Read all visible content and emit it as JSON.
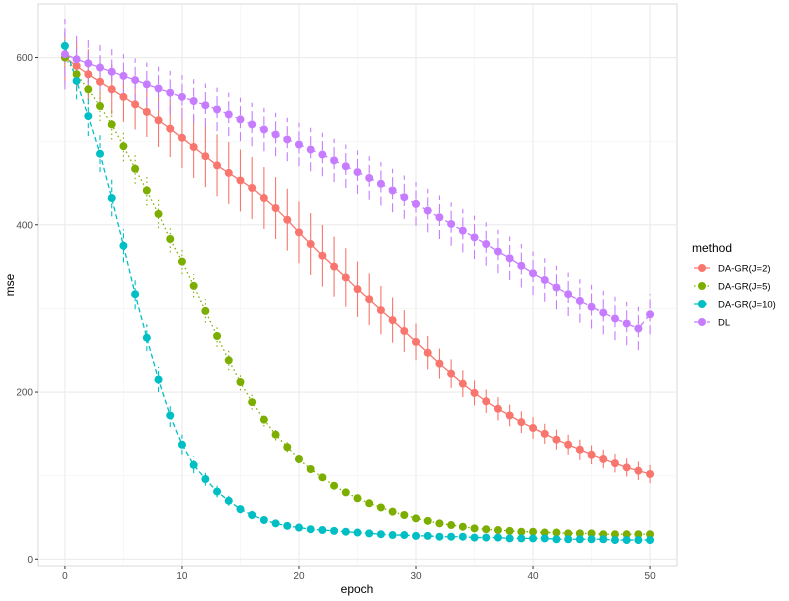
{
  "chart_data": {
    "type": "line",
    "xlabel": "epoch",
    "ylabel": "mse",
    "xlim": [
      -2.3,
      52.3
    ],
    "ylim": [
      -8,
      664
    ],
    "x_ticks": [
      0,
      10,
      20,
      30,
      40,
      50
    ],
    "y_ticks": [
      0,
      200,
      400,
      600
    ],
    "grid": true,
    "legend": {
      "title": "method",
      "position": "right"
    },
    "series": [
      {
        "name": "DA-GR(J=2)",
        "color": "#F8766D",
        "dash": "solid",
        "x": [
          0,
          1,
          2,
          3,
          4,
          5,
          6,
          7,
          8,
          9,
          10,
          11,
          12,
          13,
          14,
          15,
          16,
          17,
          18,
          19,
          20,
          21,
          22,
          23,
          24,
          25,
          26,
          27,
          28,
          29,
          30,
          31,
          32,
          33,
          34,
          35,
          36,
          37,
          38,
          39,
          40,
          41,
          42,
          43,
          44,
          45,
          46,
          47,
          48,
          49,
          50
        ],
        "y": [
          600,
          590,
          580,
          571,
          562,
          553,
          544,
          535,
          525,
          515,
          504,
          493,
          482,
          471,
          462,
          453,
          444,
          432,
          420,
          406,
          391,
          377,
          363,
          350,
          337,
          323,
          311,
          298,
          286,
          273,
          260,
          247,
          234,
          222,
          210,
          199,
          189,
          180,
          172,
          164,
          157,
          150,
          143,
          137,
          131,
          125,
          120,
          115,
          110,
          106,
          102
        ],
        "err": [
          30,
          30,
          30,
          30,
          30,
          30,
          30,
          30,
          32,
          34,
          36,
          37,
          37,
          37,
          37,
          37,
          37,
          37,
          37,
          37,
          37,
          37,
          37,
          36,
          35,
          33,
          31,
          29,
          27,
          25,
          22,
          20,
          18,
          17,
          16,
          15,
          14,
          14,
          13,
          13,
          13,
          12,
          12,
          12,
          12,
          11,
          11,
          11,
          11,
          11,
          11
        ]
      },
      {
        "name": "DA-GR(J=5)",
        "color": "#7CAE00",
        "dash": "dotted",
        "x": [
          0,
          1,
          2,
          3,
          4,
          5,
          6,
          7,
          8,
          9,
          10,
          11,
          12,
          13,
          14,
          15,
          16,
          17,
          18,
          19,
          20,
          21,
          22,
          23,
          24,
          25,
          26,
          27,
          28,
          29,
          30,
          31,
          32,
          33,
          34,
          35,
          36,
          37,
          38,
          39,
          40,
          41,
          42,
          43,
          44,
          45,
          46,
          47,
          48,
          49,
          50
        ],
        "y": [
          600,
          580,
          562,
          542,
          520,
          494,
          467,
          441,
          413,
          383,
          356,
          327,
          297,
          267,
          238,
          212,
          188,
          167,
          149,
          134,
          120,
          108,
          98,
          88,
          80,
          73,
          67,
          62,
          57,
          53,
          49,
          46,
          43,
          41,
          39,
          37,
          36,
          35,
          34,
          33,
          33,
          32,
          32,
          31,
          31,
          31,
          30,
          30,
          30,
          30,
          30
        ],
        "err": [
          18,
          18,
          18,
          18,
          18,
          18,
          18,
          18,
          17,
          16,
          15,
          14,
          14,
          13,
          12,
          10,
          9,
          8,
          7,
          6,
          5,
          5,
          4,
          4,
          4,
          3,
          3,
          3,
          3,
          3,
          3,
          3,
          3,
          3,
          3,
          3,
          3,
          3,
          3,
          3,
          3,
          3,
          3,
          3,
          3,
          3,
          3,
          3,
          3,
          3,
          3
        ]
      },
      {
        "name": "DA-GR(J=10)",
        "color": "#00BFC4",
        "dash": "dashed",
        "x": [
          0,
          1,
          2,
          3,
          4,
          5,
          6,
          7,
          8,
          9,
          10,
          11,
          12,
          13,
          14,
          15,
          16,
          17,
          18,
          19,
          20,
          21,
          22,
          23,
          24,
          25,
          26,
          27,
          28,
          29,
          30,
          31,
          32,
          33,
          34,
          35,
          36,
          37,
          38,
          39,
          40,
          41,
          42,
          43,
          44,
          45,
          46,
          47,
          48,
          49,
          50
        ],
        "y": [
          614,
          572,
          530,
          485,
          432,
          375,
          317,
          265,
          215,
          172,
          137,
          113,
          96,
          81,
          70,
          60,
          53,
          47,
          43,
          40,
          38,
          36,
          35,
          34,
          33,
          32,
          31,
          30,
          29,
          29,
          28,
          28,
          27,
          27,
          27,
          26,
          26,
          26,
          25,
          25,
          25,
          25,
          24,
          24,
          24,
          24,
          24,
          23,
          23,
          23,
          23
        ],
        "err": [
          18,
          22,
          24,
          22,
          22,
          20,
          18,
          16,
          15,
          14,
          12,
          10,
          8,
          7,
          6,
          5,
          5,
          4,
          4,
          4,
          3,
          3,
          3,
          3,
          3,
          3,
          3,
          3,
          3,
          3,
          3,
          3,
          3,
          3,
          3,
          3,
          3,
          3,
          3,
          3,
          3,
          3,
          3,
          3,
          3,
          3,
          3,
          3,
          3,
          3,
          3
        ]
      },
      {
        "name": "DL",
        "color": "#C77CFF",
        "dash": "longdash",
        "x": [
          0,
          1,
          2,
          3,
          4,
          5,
          6,
          7,
          8,
          9,
          10,
          11,
          12,
          13,
          14,
          15,
          16,
          17,
          18,
          19,
          20,
          21,
          22,
          23,
          24,
          25,
          26,
          27,
          28,
          29,
          30,
          31,
          32,
          33,
          34,
          35,
          36,
          37,
          38,
          39,
          40,
          41,
          42,
          43,
          44,
          45,
          46,
          47,
          48,
          49,
          50
        ],
        "y": [
          604,
          598,
          593,
          588,
          583,
          578,
          573,
          568,
          563,
          558,
          553,
          548,
          543,
          538,
          532,
          526,
          520,
          514,
          508,
          502,
          496,
          490,
          484,
          477,
          470,
          463,
          456,
          449,
          441,
          433,
          425,
          417,
          409,
          401,
          393,
          385,
          377,
          368,
          360,
          351,
          342,
          334,
          325,
          317,
          309,
          302,
          295,
          288,
          282,
          276,
          293
        ],
        "err": [
          42,
          28,
          28,
          27,
          27,
          26,
          26,
          26,
          26,
          26,
          26,
          26,
          26,
          26,
          26,
          26,
          26,
          26,
          26,
          26,
          26,
          26,
          26,
          26,
          26,
          26,
          26,
          26,
          26,
          26,
          26,
          26,
          26,
          26,
          26,
          26,
          26,
          26,
          26,
          26,
          26,
          26,
          26,
          26,
          26,
          26,
          26,
          26,
          26,
          26,
          24
        ]
      }
    ]
  }
}
